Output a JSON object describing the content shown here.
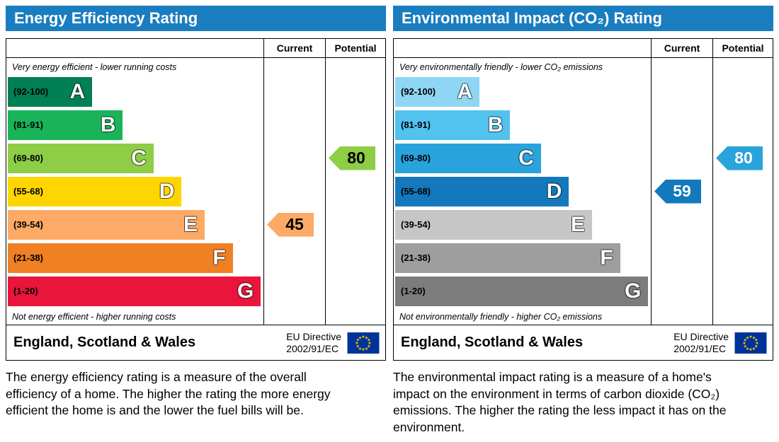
{
  "panels": [
    {
      "title": "Energy Efficiency Rating",
      "header_bg": "#1a7dbf",
      "columns": {
        "current": "Current",
        "potential": "Potential"
      },
      "top_caption": "Very energy efficient - lower running costs",
      "bottom_caption": "Not energy efficient - higher running costs",
      "bands": [
        {
          "letter": "A",
          "range": "(92-100)",
          "color": "#008054",
          "width_pct": 33
        },
        {
          "letter": "B",
          "range": "(81-91)",
          "color": "#19b459",
          "width_pct": 45
        },
        {
          "letter": "C",
          "range": "(69-80)",
          "color": "#8dce46",
          "width_pct": 57
        },
        {
          "letter": "D",
          "range": "(55-68)",
          "color": "#ffd500",
          "width_pct": 68
        },
        {
          "letter": "E",
          "range": "(39-54)",
          "color": "#fcaa65",
          "width_pct": 77
        },
        {
          "letter": "F",
          "range": "(21-38)",
          "color": "#ef8023",
          "width_pct": 88
        },
        {
          "letter": "G",
          "range": "(1-20)",
          "color": "#e9153b",
          "width_pct": 99
        }
      ],
      "current": {
        "value": 45,
        "band": "E",
        "row": 4,
        "color": "#fcaa65",
        "text_color": "#000000"
      },
      "potential": {
        "value": 80,
        "band": "C",
        "row": 2,
        "color": "#8dce46",
        "text_color": "#000000"
      },
      "footer": {
        "region": "England, Scotland & Wales",
        "directive_line1": "EU Directive",
        "directive_line2": "2002/91/EC",
        "flag": {
          "bg": "#003399",
          "star_color": "#ffcc00"
        }
      },
      "description": "The energy efficiency rating is a measure of the overall efficiency of a home. The higher the rating the more energy efficient the home is and the lower the fuel bills will be."
    },
    {
      "title": "Environmental Impact (CO₂) Rating",
      "header_bg": "#1a7dbf",
      "columns": {
        "current": "Current",
        "potential": "Potential"
      },
      "top_caption": "Very environmentally friendly - lower CO₂ emissions",
      "bottom_caption": "Not environmentally friendly - higher CO₂ emissions",
      "bands": [
        {
          "letter": "A",
          "range": "(92-100)",
          "color": "#8ed6f3",
          "width_pct": 33
        },
        {
          "letter": "B",
          "range": "(81-91)",
          "color": "#52c2ef",
          "width_pct": 45
        },
        {
          "letter": "C",
          "range": "(69-80)",
          "color": "#29a3dc",
          "width_pct": 57
        },
        {
          "letter": "D",
          "range": "(55-68)",
          "color": "#1378bc",
          "width_pct": 68
        },
        {
          "letter": "E",
          "range": "(39-54)",
          "color": "#c6c6c6",
          "width_pct": 77
        },
        {
          "letter": "F",
          "range": "(21-38)",
          "color": "#9e9e9e",
          "width_pct": 88
        },
        {
          "letter": "G",
          "range": "(1-20)",
          "color": "#7c7c7c",
          "width_pct": 99
        }
      ],
      "current": {
        "value": 59,
        "band": "D",
        "row": 3,
        "color": "#1378bc",
        "text_color": "#ffffff"
      },
      "potential": {
        "value": 80,
        "band": "C",
        "row": 2,
        "color": "#29a3dc",
        "text_color": "#ffffff"
      },
      "footer": {
        "region": "England, Scotland & Wales",
        "directive_line1": "EU Directive",
        "directive_line2": "2002/91/EC",
        "flag": {
          "bg": "#003399",
          "star_color": "#ffcc00"
        }
      },
      "description": "The environmental impact rating is a measure of a home's impact on the environment in terms of carbon dioxide (CO₂) emissions. The higher the rating the less impact it has on the environment."
    }
  ],
  "chart_data": [
    {
      "type": "bar",
      "title": "Energy Efficiency Rating",
      "categories": [
        "A (92-100)",
        "B (81-91)",
        "C (69-80)",
        "D (55-68)",
        "E (39-54)",
        "F (21-38)",
        "G (1-20)"
      ],
      "series": [
        {
          "name": "Current",
          "value": 45,
          "band": "E"
        },
        {
          "name": "Potential",
          "value": 80,
          "band": "C"
        }
      ],
      "xlim": [
        1,
        100
      ],
      "legend_position": "column-headers-top-right",
      "annotations": [
        "Very energy efficient - lower running costs",
        "Not energy efficient - higher running costs",
        "England, Scotland & Wales",
        "EU Directive 2002/91/EC"
      ]
    },
    {
      "type": "bar",
      "title": "Environmental Impact (CO₂) Rating",
      "categories": [
        "A (92-100)",
        "B (81-91)",
        "C (69-80)",
        "D (55-68)",
        "E (39-54)",
        "F (21-38)",
        "G (1-20)"
      ],
      "series": [
        {
          "name": "Current",
          "value": 59,
          "band": "D"
        },
        {
          "name": "Potential",
          "value": 80,
          "band": "C"
        }
      ],
      "xlim": [
        1,
        100
      ],
      "legend_position": "column-headers-top-right",
      "annotations": [
        "Very environmentally friendly - lower CO₂ emissions",
        "Not environmentally friendly - higher CO₂ emissions",
        "England, Scotland & Wales",
        "EU Directive 2002/91/EC"
      ]
    }
  ]
}
